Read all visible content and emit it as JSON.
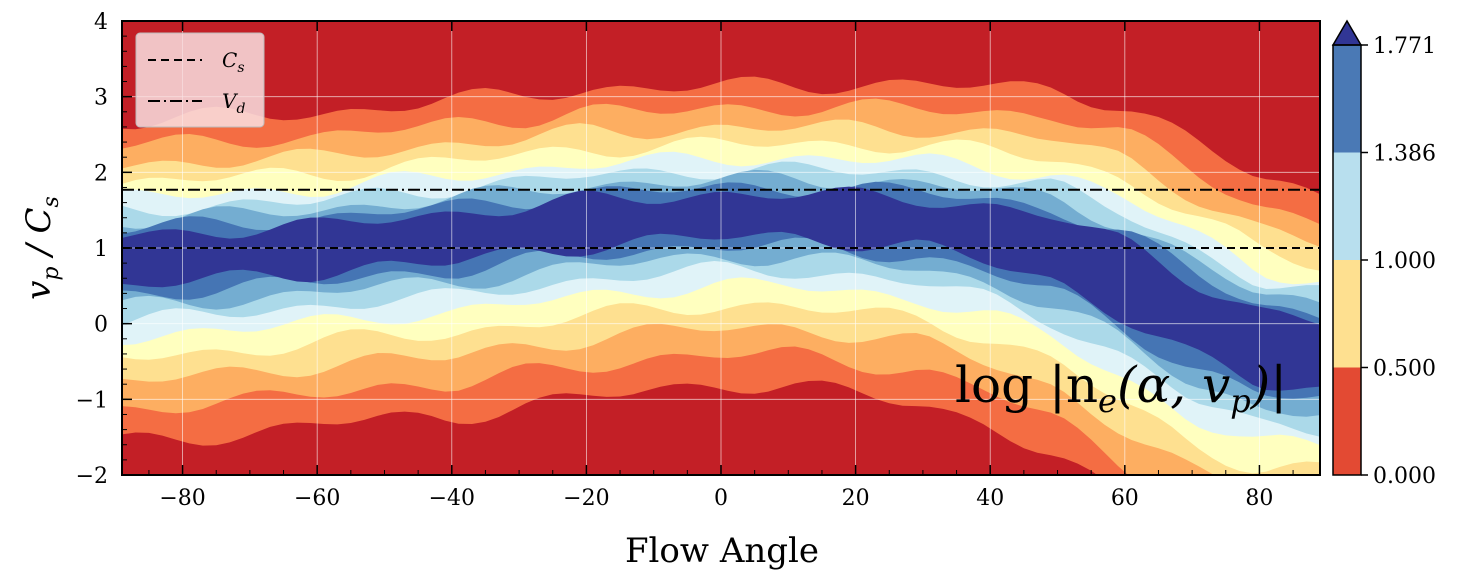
{
  "chart_data": {
    "type": "heatmap",
    "title": "",
    "xlabel": "Flow Angle",
    "ylabel": "v_p / C_s",
    "ylabel_main": "v",
    "ylabel_sub": "p",
    "ylabel_slash": " / C",
    "ylabel_sub2": "s",
    "xlim": [
      -89,
      89
    ],
    "ylim": [
      -2,
      4
    ],
    "xticks": [
      -80,
      -60,
      -40,
      -20,
      0,
      20,
      40,
      60,
      80
    ],
    "xtick_labels": [
      "−80",
      "−60",
      "−40",
      "−20",
      "0",
      "20",
      "40",
      "60",
      "80"
    ],
    "yticks": [
      -2,
      -1,
      0,
      1,
      2,
      3,
      4
    ],
    "ytick_labels": [
      "−2",
      "−1",
      "0",
      "1",
      "2",
      "3",
      "4"
    ],
    "grid": true,
    "annotation": "log |n_e(α, v_p)|",
    "annotation_text": "log |n",
    "annotation_sub": "e",
    "annotation_rest": "(α, v",
    "annotation_sub2": "p",
    "annotation_end": ")|",
    "reference_lines": [
      {
        "name": "C_s",
        "symbol": "C",
        "sub": "s",
        "y": 1.0,
        "style": "dashed"
      },
      {
        "name": "V_d",
        "symbol": "V",
        "sub": "d",
        "y": 1.77,
        "style": "dashdot"
      }
    ],
    "legend_position": "top-left",
    "colorbar": {
      "levels": [
        0.0,
        0.5,
        1.0,
        1.386,
        1.771
      ],
      "tick_labels": [
        "0.000",
        "0.500",
        "1.000",
        "1.386",
        "1.771"
      ],
      "colors": [
        "#e34a33",
        "#fee090",
        "#b8dfee",
        "#4a79b5"
      ],
      "extend_color": "#313695"
    },
    "ridge": {
      "angles": [
        -89,
        -80,
        -70,
        -60,
        -50,
        -40,
        -30,
        -20,
        -10,
        0,
        10,
        20,
        30,
        40,
        50,
        60,
        70,
        80,
        89
      ],
      "centers": [
        0.85,
        0.9,
        0.95,
        1.0,
        1.1,
        1.15,
        1.25,
        1.35,
        1.4,
        1.45,
        1.45,
        1.4,
        1.35,
        1.2,
        1.0,
        0.6,
        0.1,
        -0.3,
        -0.4
      ],
      "widths": [
        0.55,
        0.55,
        0.55,
        0.5,
        0.5,
        0.55,
        0.5,
        0.5,
        0.45,
        0.45,
        0.45,
        0.5,
        0.55,
        0.65,
        0.8,
        0.95,
        1.0,
        0.9,
        0.8
      ]
    },
    "contour_levels": [
      {
        "span": 3.6,
        "color": "#f46d43"
      },
      {
        "span": 2.9,
        "color": "#fdae61"
      },
      {
        "span": 2.3,
        "color": "#fee090"
      },
      {
        "span": 1.8,
        "color": "#ffffbf"
      },
      {
        "span": 1.35,
        "color": "#e0f3f8"
      },
      {
        "span": 1.0,
        "color": "#abd9e9"
      },
      {
        "span": 0.7,
        "color": "#74add1"
      },
      {
        "span": 0.45,
        "color": "#4575b4"
      },
      {
        "span": 0.25,
        "color": "#313695"
      }
    ],
    "background_color": "#c31f26"
  }
}
